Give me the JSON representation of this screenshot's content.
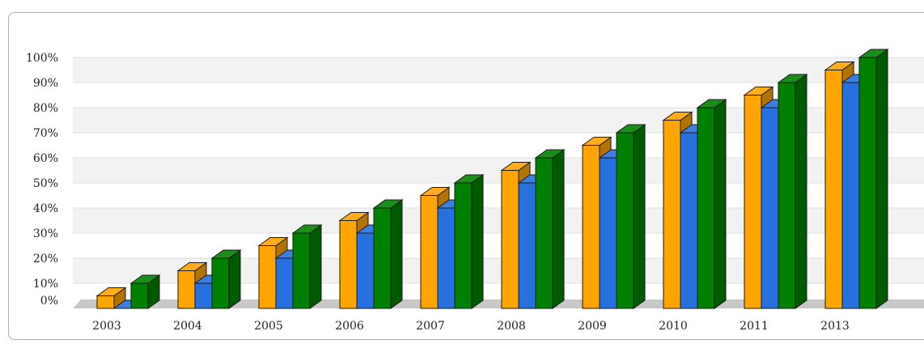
{
  "chart_data": {
    "type": "bar",
    "title": "",
    "xlabel": "",
    "ylabel": "",
    "categories": [
      "2003",
      "2004",
      "2005",
      "2006",
      "2007",
      "2008",
      "2009",
      "2010",
      "2011",
      "2013"
    ],
    "series": [
      {
        "values": [
          5,
          15,
          25,
          35,
          45,
          55,
          65,
          75,
          85,
          95
        ],
        "color": "#ffa500"
      },
      {
        "values": [
          0,
          10,
          20,
          30,
          40,
          50,
          60,
          70,
          80,
          90
        ],
        "color": "#2670e0"
      },
      {
        "values": [
          10,
          20,
          30,
          40,
          50,
          60,
          70,
          80,
          90,
          100
        ],
        "color": "#008000"
      }
    ],
    "ylim": [
      0,
      100
    ],
    "yticks": [
      "0%",
      "10%",
      "20%",
      "30%",
      "40%",
      "50%",
      "60%",
      "70%",
      "80%",
      "90%",
      "100%"
    ],
    "grid": true,
    "grid_band_color": "#f2f2f2",
    "floor_color": "#c8c8c8",
    "legend": "none",
    "style": "3d"
  }
}
